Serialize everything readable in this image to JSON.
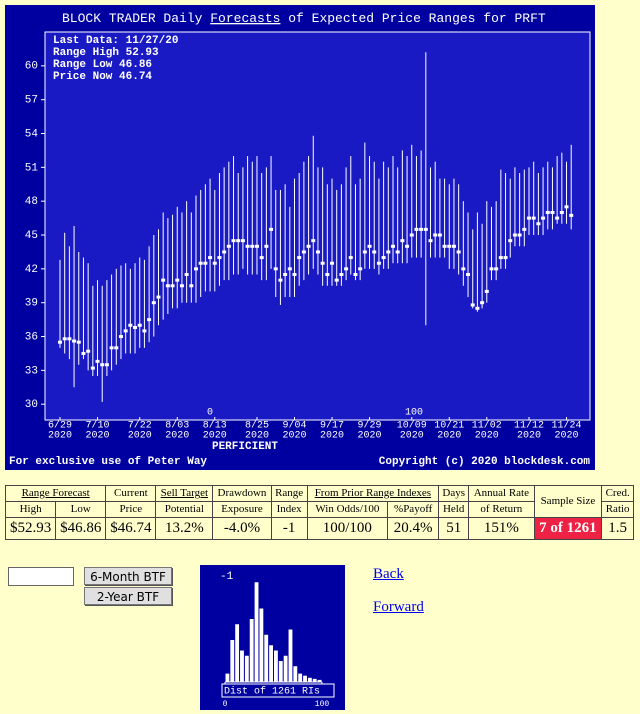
{
  "chart_data": [
    {
      "type": "range",
      "title_prefix": "BLOCK TRADER Daily ",
      "title_link": "Forecasts",
      "title_suffix": " of Expected Price Ranges for  PRFT",
      "info": [
        "Last Data: 11/27/20",
        "Range High 52.93",
        "Range Low  46.86",
        "Price Now  46.74"
      ],
      "company": "PERFICIENT",
      "footer_left": "For exclusive use of Peter Way",
      "footer_right": "Copyright (c) 2020 blockdesk.com",
      "markers": [
        "0",
        "100"
      ],
      "year": "2020",
      "categories": [
        "6/29",
        null,
        null,
        null,
        null,
        null,
        null,
        null,
        "7/10",
        null,
        null,
        null,
        null,
        null,
        null,
        null,
        null,
        "7/22",
        null,
        null,
        null,
        null,
        null,
        null,
        null,
        "8/03",
        null,
        null,
        null,
        null,
        null,
        null,
        null,
        "8/13",
        null,
        null,
        null,
        null,
        null,
        null,
        null,
        null,
        "8/25",
        null,
        null,
        null,
        null,
        null,
        null,
        null,
        "9/04",
        null,
        null,
        null,
        null,
        null,
        null,
        null,
        "9/17",
        null,
        null,
        null,
        null,
        null,
        null,
        null,
        "9/29",
        null,
        null,
        null,
        null,
        null,
        null,
        null,
        null,
        "10/09",
        null,
        null,
        null,
        null,
        null,
        null,
        null,
        "10/21",
        null,
        null,
        null,
        null,
        null,
        null,
        null,
        "11/02",
        null,
        null,
        null,
        null,
        null,
        null,
        null,
        null,
        "11/12",
        null,
        null,
        null,
        null,
        null,
        null,
        null,
        "11/24",
        null
      ],
      "high": [
        42.8,
        45.2,
        44,
        45.8,
        43.5,
        43,
        42.5,
        40.5,
        41,
        40.5,
        41,
        41.5,
        42,
        42.3,
        42.5,
        42,
        42.5,
        43,
        42.8,
        44,
        45,
        45.5,
        47,
        46.5,
        46.8,
        47.5,
        47,
        48,
        47,
        48.5,
        49,
        49.5,
        50,
        49,
        50.5,
        51,
        51.5,
        52,
        50.5,
        51,
        52,
        51.5,
        52,
        50.5,
        51,
        52,
        49,
        49,
        49.5,
        47.5,
        50,
        50.5,
        51.5,
        52,
        53.8,
        51,
        51,
        49.5,
        50,
        49,
        49.5,
        51,
        52,
        49.5,
        50,
        53.2,
        52,
        51.5,
        50,
        51.5,
        51,
        52,
        51,
        52.5,
        52,
        53,
        52,
        52.5,
        61.2,
        51,
        51.5,
        50,
        50,
        49.5,
        50,
        49.5,
        48,
        47,
        45.5,
        47,
        46,
        48,
        47.5,
        48,
        50.8,
        50.5,
        50,
        51,
        50.5,
        50.8,
        51,
        51.5,
        50.5,
        51,
        51.5,
        51,
        52,
        52.3,
        51.5,
        53
      ],
      "low": [
        35,
        34.5,
        34,
        31.5,
        33.5,
        34,
        33,
        32.5,
        32.5,
        30.2,
        32.5,
        33,
        33.5,
        34,
        34.5,
        34.5,
        34.5,
        35,
        35,
        35.5,
        36,
        37,
        37.5,
        38,
        38.5,
        38.5,
        39,
        39,
        39,
        39,
        39.5,
        40,
        40,
        40,
        40.5,
        41,
        41,
        41.5,
        41.5,
        42,
        41.5,
        41.5,
        41.5,
        41,
        41,
        42,
        39.5,
        38.8,
        39.5,
        39.5,
        39.5,
        40.5,
        41,
        41.5,
        42,
        41.5,
        40.5,
        40.5,
        40.5,
        40.5,
        40.5,
        41,
        41.5,
        41,
        41,
        42,
        42,
        42,
        41.5,
        42,
        42,
        42.5,
        42.5,
        42.5,
        42.5,
        43,
        43,
        43,
        37,
        43,
        43,
        43,
        43,
        42,
        42,
        41.5,
        40.5,
        39.5,
        38.5,
        38.2,
        38.5,
        39,
        41,
        41,
        42,
        42,
        43,
        44,
        44,
        44,
        45,
        45,
        45,
        45,
        45.5,
        45.5,
        46,
        46,
        46,
        45.5
      ],
      "price": [
        35.5,
        35.8,
        35.8,
        35.6,
        35.5,
        34.5,
        34.7,
        33.2,
        33.8,
        33.5,
        33.5,
        35,
        35,
        36,
        36.5,
        37,
        36.8,
        37,
        36.5,
        37.5,
        39,
        39.5,
        41,
        40.5,
        40.5,
        41,
        40.5,
        41.5,
        40.5,
        42,
        42.5,
        42.5,
        43,
        42.5,
        43,
        43.5,
        44,
        44.5,
        44.5,
        44.5,
        44,
        44,
        44,
        43,
        44,
        45.5,
        42,
        41,
        41.5,
        42,
        41.5,
        43,
        43.5,
        44,
        44.5,
        43.5,
        42.5,
        41.5,
        42.5,
        41,
        41.5,
        42,
        43,
        41.5,
        42,
        43.5,
        44,
        43.5,
        42.5,
        43,
        43.5,
        44,
        43.5,
        44.5,
        44,
        45,
        45.5,
        45.5,
        45.5,
        44.5,
        45,
        45,
        44,
        44,
        44,
        43.5,
        42,
        41.5,
        38.8,
        38.5,
        39,
        40,
        42,
        42,
        43,
        43,
        44.5,
        45,
        45,
        45.5,
        46.5,
        46.5,
        46,
        46.5,
        47,
        47,
        46.5,
        47,
        47.5,
        46.74
      ],
      "bar_color": "#ffffff",
      "price_color": "#ffffff",
      "ylim": [
        28.6,
        63.0
      ],
      "yticks": [
        30,
        33,
        36,
        39,
        42,
        45,
        48,
        51,
        54,
        57,
        60
      ]
    },
    {
      "type": "histogram",
      "label": "Dist of 1261 RIs",
      "marker_label": "-1",
      "bins": [
        0,
        5,
        10,
        15,
        20,
        25,
        30,
        35,
        40,
        45,
        50,
        55,
        60,
        65,
        70,
        75,
        80,
        85,
        90,
        95,
        100
      ],
      "counts": [
        8,
        40,
        55,
        30,
        25,
        60,
        95,
        70,
        45,
        35,
        30,
        20,
        25,
        50,
        15,
        8,
        6,
        4,
        3,
        2
      ],
      "color": "#ffffff",
      "xlim": [
        0,
        100
      ],
      "xticks": [
        0,
        100
      ],
      "ylim": [
        0,
        100
      ]
    }
  ],
  "table": {
    "top": [
      "Range Forecast",
      "Current",
      "Sell Target",
      "Drawdown",
      "Range",
      "From Prior Range Indexes",
      "Days",
      "Annual Rate",
      "Sample Size",
      "Cred."
    ],
    "sub": [
      "High",
      "Low",
      "Price",
      "Potential",
      "Exposure",
      "Index",
      "Win Odds/100",
      "%Payoff",
      "Held",
      "of Return",
      "Ratio"
    ],
    "row": [
      "$52.93",
      "$46.86",
      "$46.74",
      "13.2%",
      "-4.0%",
      "-1",
      "100/100",
      "20.4%",
      "51",
      "151%",
      "7 of 1261",
      "1.5"
    ]
  },
  "controls": {
    "buttons": [
      "6-Month BTF",
      "2-Year BTF"
    ],
    "links": [
      "Back",
      "Forward"
    ]
  }
}
